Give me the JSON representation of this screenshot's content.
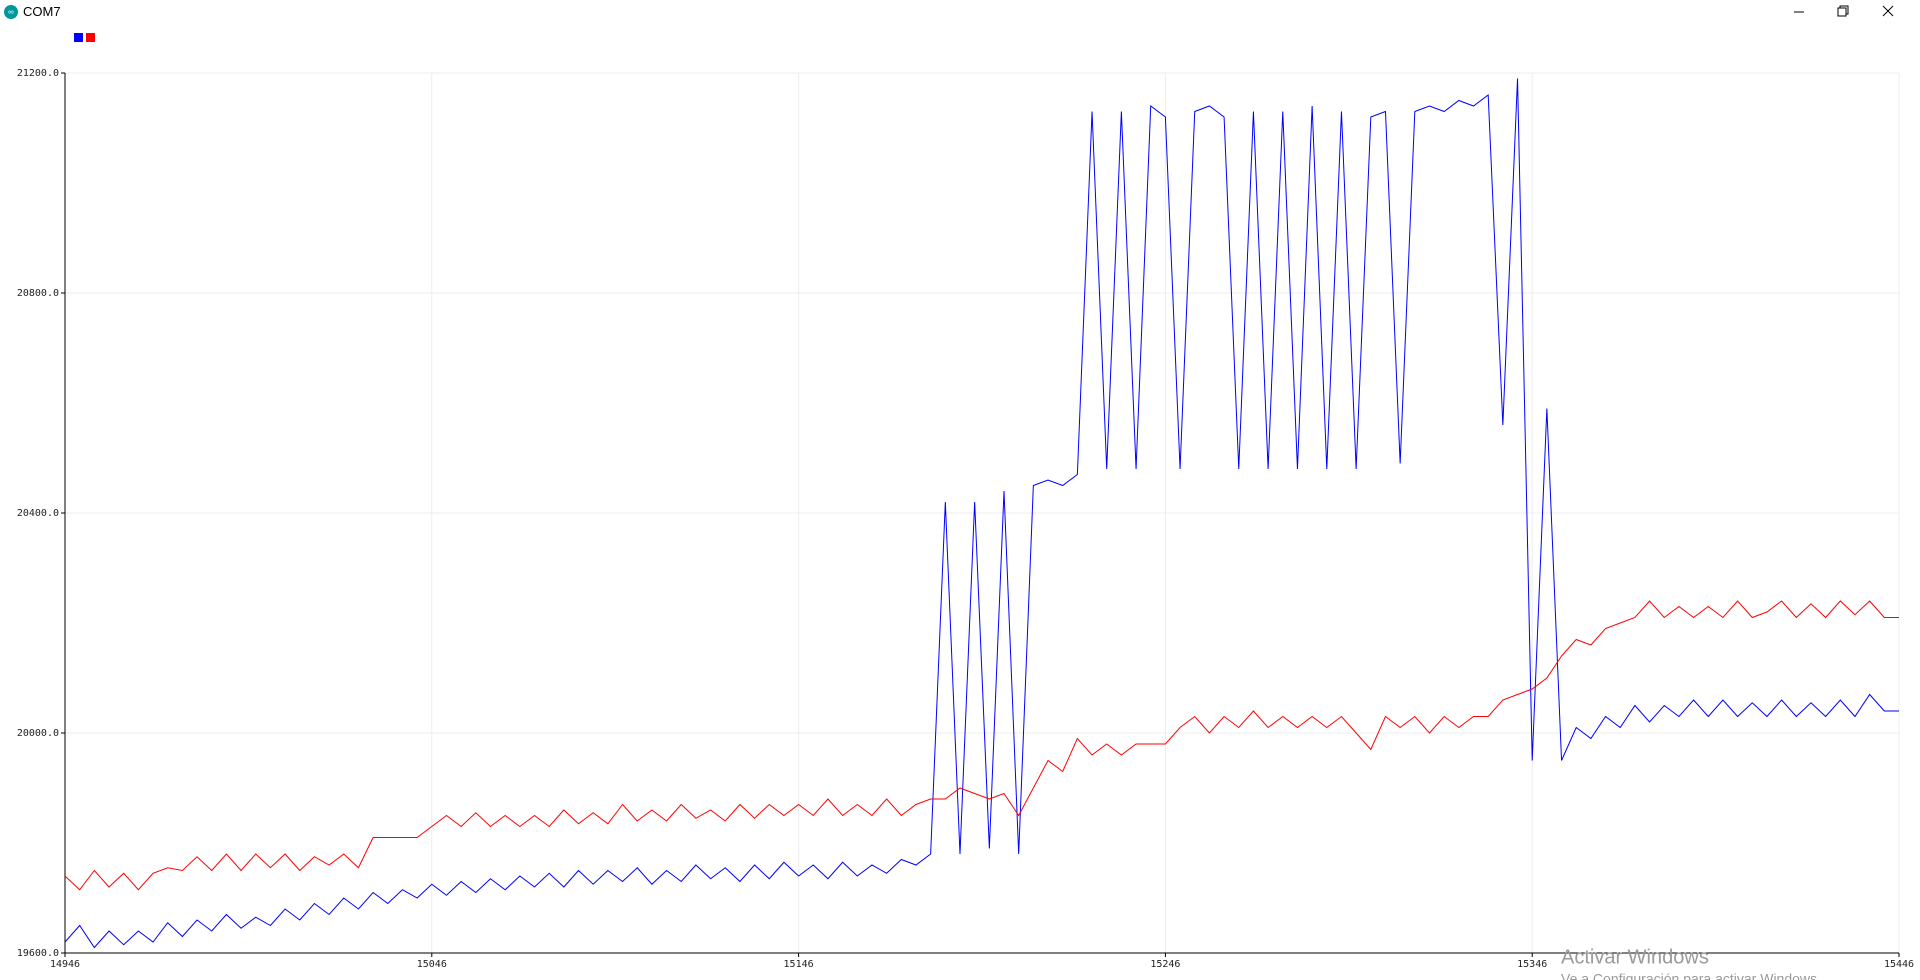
{
  "window": {
    "title": "COM7",
    "watermark": [
      "Activar Windows",
      "Ve a Configuración para activar Windows"
    ]
  },
  "chart_data": {
    "type": "line",
    "grid": true,
    "xlim": [
      14946,
      15446
    ],
    "xticks": [
      14946,
      15046,
      15146,
      15246,
      15346,
      15446
    ],
    "ylim": [
      19600,
      21200
    ],
    "yticks": [
      {
        "value": 19600,
        "label": "19600.0"
      },
      {
        "value": 20000,
        "label": "20000.0"
      },
      {
        "value": 20400,
        "label": "20400.0"
      },
      {
        "value": 20800,
        "label": "20800.0"
      },
      {
        "value": 21200,
        "label": "21200.0"
      }
    ],
    "x": [
      14946,
      14950,
      14954,
      14958,
      14962,
      14966,
      14970,
      14974,
      14978,
      14982,
      14986,
      14990,
      14994,
      14998,
      15002,
      15006,
      15010,
      15014,
      15018,
      15022,
      15026,
      15030,
      15034,
      15038,
      15042,
      15046,
      15050,
      15054,
      15058,
      15062,
      15066,
      15070,
      15074,
      15078,
      15082,
      15086,
      15090,
      15094,
      15098,
      15102,
      15106,
      15110,
      15114,
      15118,
      15122,
      15126,
      15130,
      15134,
      15138,
      15142,
      15146,
      15150,
      15154,
      15158,
      15162,
      15166,
      15170,
      15174,
      15178,
      15182,
      15186,
      15190,
      15194,
      15198,
      15202,
      15206,
      15210,
      15214,
      15218,
      15222,
      15226,
      15230,
      15234,
      15238,
      15242,
      15246,
      15250,
      15254,
      15258,
      15262,
      15266,
      15270,
      15274,
      15278,
      15282,
      15286,
      15290,
      15294,
      15298,
      15302,
      15306,
      15310,
      15314,
      15318,
      15322,
      15326,
      15330,
      15334,
      15338,
      15342,
      15346,
      15350,
      15354,
      15358,
      15362,
      15366,
      15370,
      15374,
      15378,
      15382,
      15386,
      15390,
      15394,
      15398,
      15402,
      15406,
      15410,
      15414,
      15418,
      15422,
      15426,
      15430,
      15434,
      15438,
      15442,
      15446
    ],
    "series": [
      {
        "color": "#0000ff",
        "values": [
          19620,
          19650,
          19610,
          19640,
          19615,
          19640,
          19620,
          19655,
          19630,
          19660,
          19640,
          19670,
          19645,
          19665,
          19650,
          19680,
          19660,
          19690,
          19670,
          19700,
          19680,
          19710,
          19690,
          19715,
          19700,
          19725,
          19705,
          19730,
          19710,
          19735,
          19715,
          19740,
          19720,
          19745,
          19720,
          19750,
          19725,
          19750,
          19730,
          19755,
          19725,
          19750,
          19730,
          19760,
          19735,
          19755,
          19730,
          19760,
          19735,
          19765,
          19740,
          19760,
          19735,
          19765,
          19740,
          19760,
          19745,
          19770,
          19760,
          19780,
          20420,
          19780,
          20420,
          19790,
          20440,
          19780,
          20450,
          20460,
          20450,
          20470,
          21130,
          20480,
          21130,
          20480,
          21140,
          21120,
          20480,
          21130,
          21140,
          21120,
          20480,
          21130,
          20480,
          21130,
          20480,
          21140,
          20480,
          21130,
          20480,
          21120,
          21130,
          20490,
          21130,
          21140,
          21130,
          21150,
          21140,
          21160,
          20560,
          21190,
          19950,
          20590,
          19950,
          20010,
          19990,
          20030,
          20010,
          20050,
          20020,
          20050,
          20030,
          20060,
          20030,
          20060,
          20030,
          20055,
          20030,
          20060,
          20030,
          20055,
          20030,
          20060,
          20030,
          20070,
          20040,
          20040
        ]
      },
      {
        "color": "#ff0000",
        "values": [
          19740,
          19715,
          19750,
          19720,
          19745,
          19715,
          19745,
          19755,
          19750,
          19775,
          19750,
          19780,
          19750,
          19780,
          19755,
          19780,
          19750,
          19775,
          19760,
          19780,
          19755,
          19810,
          19810,
          19810,
          19810,
          19830,
          19850,
          19830,
          19855,
          19830,
          19850,
          19830,
          19850,
          19830,
          19860,
          19835,
          19855,
          19835,
          19870,
          19840,
          19860,
          19840,
          19870,
          19845,
          19860,
          19840,
          19870,
          19845,
          19870,
          19850,
          19870,
          19850,
          19880,
          19850,
          19870,
          19850,
          19880,
          19850,
          19870,
          19880,
          19880,
          19900,
          19890,
          19880,
          19890,
          19850,
          19900,
          19950,
          19930,
          19990,
          19960,
          19980,
          19960,
          19980,
          19980,
          19980,
          20010,
          20030,
          20000,
          20030,
          20010,
          20040,
          20010,
          20030,
          20010,
          20030,
          20010,
          20030,
          20000,
          19970,
          20030,
          20010,
          20030,
          20000,
          20030,
          20010,
          20030,
          20030,
          20060,
          20070,
          20080,
          20100,
          20140,
          20170,
          20160,
          20190,
          20200,
          20210,
          20240,
          20210,
          20230,
          20210,
          20230,
          20210,
          20240,
          20210,
          20220,
          20240,
          20210,
          20235,
          20210,
          20240,
          20215,
          20240,
          20210,
          20210
        ]
      }
    ]
  }
}
